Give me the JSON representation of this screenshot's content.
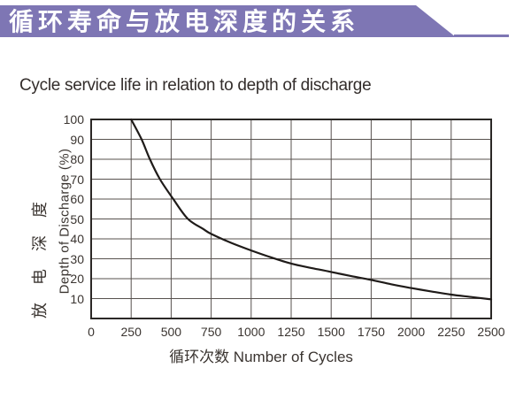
{
  "banner": {
    "title": "循环寿命与放电深度的关系",
    "bar_color": "#7e76b4"
  },
  "title": "Cycle service life in relation to depth of discharge",
  "chart_data": {
    "type": "line",
    "title": "Cycle service life in relation to depth of discharge",
    "xlabel": "循环次数 Number of Cycles",
    "ylabel_cn": "放电深度",
    "ylabel_en": "Depth of Discharge (%)",
    "xlim": [
      0,
      2500
    ],
    "ylim": [
      0,
      100
    ],
    "xticks": [
      0,
      250,
      500,
      750,
      1000,
      1250,
      1500,
      1750,
      2000,
      2250,
      2500
    ],
    "yticks": [
      10,
      20,
      30,
      40,
      50,
      60,
      70,
      80,
      90,
      100
    ],
    "grid": true,
    "legend": "none",
    "series": [
      {
        "name": "cycle-life-curve",
        "points": [
          [
            250,
            100
          ],
          [
            315,
            90
          ],
          [
            367,
            80
          ],
          [
            430,
            70
          ],
          [
            513,
            60
          ],
          [
            605,
            50
          ],
          [
            700,
            45
          ],
          [
            750,
            42.5
          ],
          [
            875,
            38
          ],
          [
            1000,
            34.2
          ],
          [
            1125,
            30.7
          ],
          [
            1250,
            27.6
          ],
          [
            1375,
            25.4
          ],
          [
            1500,
            23.4
          ],
          [
            1625,
            21.3
          ],
          [
            1750,
            19.4
          ],
          [
            1875,
            17.2
          ],
          [
            2000,
            15.3
          ],
          [
            2125,
            13.6
          ],
          [
            2250,
            12
          ],
          [
            2375,
            10.8
          ],
          [
            2500,
            9.6
          ]
        ]
      }
    ],
    "colors": {
      "curve": "#1f1b19",
      "grid": "#57514e",
      "border": "#2b2826",
      "text": "#3a3430"
    }
  }
}
